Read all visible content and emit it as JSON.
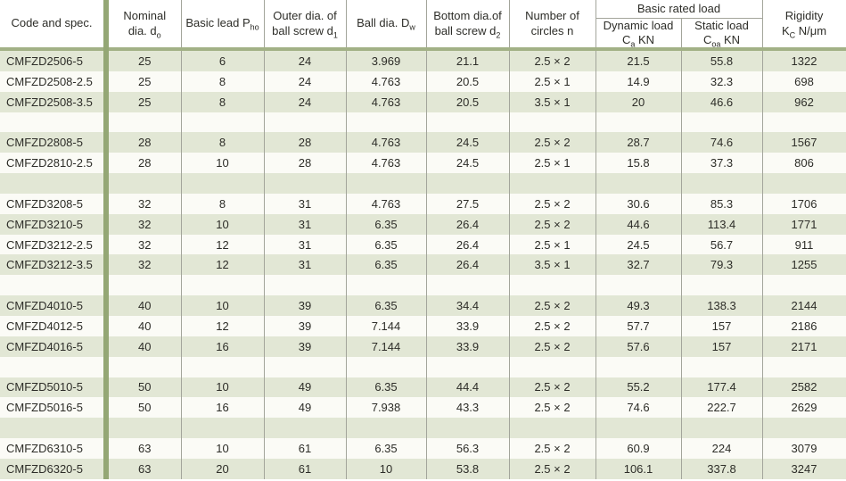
{
  "colors": {
    "accent_header_rule": "#a2b186",
    "accent_divider_bar": "#94a775",
    "row_stripe_green": "#e2e7d5",
    "row_stripe_white": "#fbfbf6",
    "gridline_gray": "#a3a59b",
    "text": "#2d2d28"
  },
  "table": {
    "header": {
      "code": "Code and spec.",
      "nominal": {
        "l1": "Nominal",
        "l2": "dia. d",
        "sub": "o"
      },
      "lead": {
        "pre": "Basic lead P",
        "sub": "ho"
      },
      "outer": {
        "l1": "Outer dia. of",
        "l2": "ball screw d",
        "sub": "1"
      },
      "ball": {
        "pre": "Ball dia. D",
        "sub": "w"
      },
      "bottom": {
        "l1": "Bottom dia.of",
        "l2": "ball screw d",
        "sub": "2"
      },
      "circles": {
        "l1": "Number of",
        "l2": "circles n"
      },
      "group": "Basic rated load",
      "dynamic": {
        "l1": "Dynamic load",
        "l2pre": "C",
        "sub": "a",
        "unit": " KN"
      },
      "static": {
        "l1": "Static load",
        "l2pre": "C",
        "sub": "oa",
        "unit": " KN"
      },
      "rigidity": {
        "l1": "Rigidity",
        "l2pre": "K",
        "sub": "C",
        "unit": " N/μm"
      }
    },
    "rows": [
      [
        "CMFZD2506-5",
        "25",
        "6",
        "24",
        "3.969",
        "21.1",
        "2.5 × 2",
        "21.5",
        "55.8",
        "1322"
      ],
      [
        "CMFZD2508-2.5",
        "25",
        "8",
        "24",
        "4.763",
        "20.5",
        "2.5 × 1",
        "14.9",
        "32.3",
        "698"
      ],
      [
        "CMFZD2508-3.5",
        "25",
        "8",
        "24",
        "4.763",
        "20.5",
        "3.5 × 1",
        "20",
        "46.6",
        "962"
      ],
      [
        "",
        "",
        "",
        "",
        "",
        "",
        "",
        "",
        "",
        ""
      ],
      [
        "CMFZD2808-5",
        "28",
        "8",
        "28",
        "4.763",
        "24.5",
        "2.5 × 2",
        "28.7",
        "74.6",
        "1567"
      ],
      [
        "CMFZD2810-2.5",
        "28",
        "10",
        "28",
        "4.763",
        "24.5",
        "2.5 × 1",
        "15.8",
        "37.3",
        "806"
      ],
      [
        "",
        "",
        "",
        "",
        "",
        "",
        "",
        "",
        "",
        ""
      ],
      [
        "CMFZD3208-5",
        "32",
        "8",
        "31",
        "4.763",
        "27.5",
        "2.5 × 2",
        "30.6",
        "85.3",
        "1706"
      ],
      [
        "CMFZD3210-5",
        "32",
        "10",
        "31",
        "6.35",
        "26.4",
        "2.5 × 2",
        "44.6",
        "113.4",
        "1771"
      ],
      [
        "CMFZD3212-2.5",
        "32",
        "12",
        "31",
        "6.35",
        "26.4",
        "2.5 × 1",
        "24.5",
        "56.7",
        "911"
      ],
      [
        "CMFZD3212-3.5",
        "32",
        "12",
        "31",
        "6.35",
        "26.4",
        "3.5 × 1",
        "32.7",
        "79.3",
        "1255"
      ],
      [
        "",
        "",
        "",
        "",
        "",
        "",
        "",
        "",
        "",
        ""
      ],
      [
        "CMFZD4010-5",
        "40",
        "10",
        "39",
        "6.35",
        "34.4",
        "2.5 × 2",
        "49.3",
        "138.3",
        "2144"
      ],
      [
        "CMFZD4012-5",
        "40",
        "12",
        "39",
        "7.144",
        "33.9",
        "2.5 × 2",
        "57.7",
        "157",
        "2186"
      ],
      [
        "CMFZD4016-5",
        "40",
        "16",
        "39",
        "7.144",
        "33.9",
        "2.5 × 2",
        "57.6",
        "157",
        "2171"
      ],
      [
        "",
        "",
        "",
        "",
        "",
        "",
        "",
        "",
        "",
        ""
      ],
      [
        "CMFZD5010-5",
        "50",
        "10",
        "49",
        "6.35",
        "44.4",
        "2.5 × 2",
        "55.2",
        "177.4",
        "2582"
      ],
      [
        "CMFZD5016-5",
        "50",
        "16",
        "49",
        "7.938",
        "43.3",
        "2.5 × 2",
        "74.6",
        "222.7",
        "2629"
      ],
      [
        "",
        "",
        "",
        "",
        "",
        "",
        "",
        "",
        "",
        ""
      ],
      [
        "CMFZD6310-5",
        "63",
        "10",
        "61",
        "6.35",
        "56.3",
        "2.5 × 2",
        "60.9",
        "224",
        "3079"
      ],
      [
        "CMFZD6320-5",
        "63",
        "20",
        "61",
        "10",
        "53.8",
        "2.5 × 2",
        "106.1",
        "337.8",
        "3247"
      ]
    ]
  }
}
